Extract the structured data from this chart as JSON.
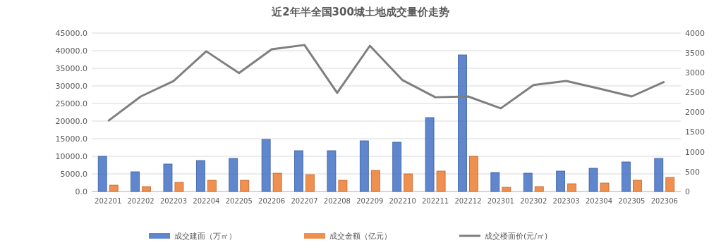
{
  "chart_data": {
    "type": "bar",
    "title": "近2年半全国300城土地成交量价走势",
    "categories": [
      "202201",
      "202202",
      "202203",
      "202204",
      "202205",
      "202206",
      "202207",
      "202208",
      "202209",
      "202210",
      "202211",
      "202212",
      "202301",
      "202302",
      "202303",
      "202304",
      "202305",
      "202306"
    ],
    "series": [
      {
        "name": "成交建面（万㎡）",
        "color": "#4472c4",
        "values": [
          10000,
          5600,
          7800,
          8800,
          9400,
          14800,
          11600,
          11600,
          14400,
          14000,
          21000,
          38800,
          5400,
          5200,
          5800,
          6600,
          8400,
          9400
        ]
      },
      {
        "name": "成交金额（亿元）",
        "color": "#ed7d31",
        "values": [
          1800,
          1400,
          2600,
          3200,
          3200,
          5200,
          4800,
          3200,
          6000,
          5000,
          5800,
          10000,
          1200,
          1400,
          2200,
          2400,
          3200,
          4000
        ]
      },
      {
        "name": "成交楼面价(元/㎡)",
        "color": "#7f7f7f",
        "type": "line",
        "axis": "y2",
        "values": [
          1780,
          2400,
          2790,
          3540,
          2990,
          3590,
          3700,
          2490,
          3680,
          2810,
          2380,
          2400,
          2100,
          2690,
          2790,
          2600,
          2400,
          2770
        ]
      }
    ],
    "ylim": [
      0,
      45000
    ],
    "yticks": [
      {
        "value": 0,
        "label": "0.0"
      },
      {
        "value": 5000,
        "label": "5000.0"
      },
      {
        "value": 10000,
        "label": "10000.0"
      },
      {
        "value": 15000,
        "label": "15000.0"
      },
      {
        "value": 20000,
        "label": "20000.0"
      },
      {
        "value": 25000,
        "label": "25000.0"
      },
      {
        "value": 30000,
        "label": "30000.0"
      },
      {
        "value": 35000,
        "label": "35000.0"
      },
      {
        "value": 40000,
        "label": "40000.0"
      },
      {
        "value": 45000,
        "label": "45000.0"
      }
    ],
    "y2lim": [
      0,
      4000
    ],
    "y2ticks": [
      0,
      500,
      1000,
      1500,
      2000,
      2500,
      3000,
      3500,
      4000
    ],
    "grid": "y",
    "legend": "bottom",
    "marker": "none"
  }
}
